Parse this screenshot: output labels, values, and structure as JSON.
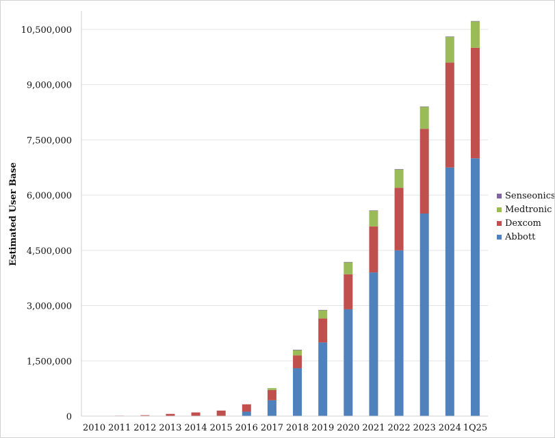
{
  "chart_data": {
    "type": "bar",
    "stacked": true,
    "title": "",
    "xlabel": "",
    "ylabel": "Estimated User Base",
    "ylim": [
      0,
      11000000
    ],
    "yticks": [
      0,
      1500000,
      3000000,
      4500000,
      6000000,
      7500000,
      9000000,
      10500000
    ],
    "ytick_labels": [
      "0",
      "1,500,000",
      "3,000,000",
      "4,500,000",
      "6,000,000",
      "7,500,000",
      "9,000,000",
      "10,500,000"
    ],
    "grid": true,
    "legend_position": "right",
    "categories": [
      "2010",
      "2011",
      "2012",
      "2013",
      "2014",
      "2015",
      "2016",
      "2017",
      "2018",
      "2019",
      "2020",
      "2021",
      "2022",
      "2023",
      "2024",
      "1Q25"
    ],
    "series": [
      {
        "name": "Abbott",
        "color": "#4f81bd",
        "values": [
          0,
          0,
          0,
          0,
          0,
          0,
          120000,
          430000,
          1300000,
          2000000,
          2900000,
          3900000,
          4500000,
          5500000,
          6750000,
          7000000
        ]
      },
      {
        "name": "Dexcom",
        "color": "#c0504d",
        "values": [
          5000,
          12000,
          25000,
          60000,
          100000,
          150000,
          200000,
          280000,
          350000,
          650000,
          950000,
          1250000,
          1700000,
          2300000,
          2850000,
          3000000
        ]
      },
      {
        "name": "Medtronic",
        "color": "#9bbb59",
        "values": [
          0,
          0,
          0,
          0,
          0,
          0,
          0,
          50000,
          150000,
          230000,
          330000,
          430000,
          500000,
          600000,
          700000,
          720000
        ]
      },
      {
        "name": "Senseonics",
        "color": "#8064a2",
        "values": [
          0,
          0,
          0,
          0,
          0,
          0,
          0,
          0,
          2000,
          3000,
          4000,
          5000,
          5000,
          5000,
          6000,
          6000
        ]
      }
    ],
    "legend_order": [
      "Senseonics",
      "Medtronic",
      "Dexcom",
      "Abbott"
    ]
  }
}
